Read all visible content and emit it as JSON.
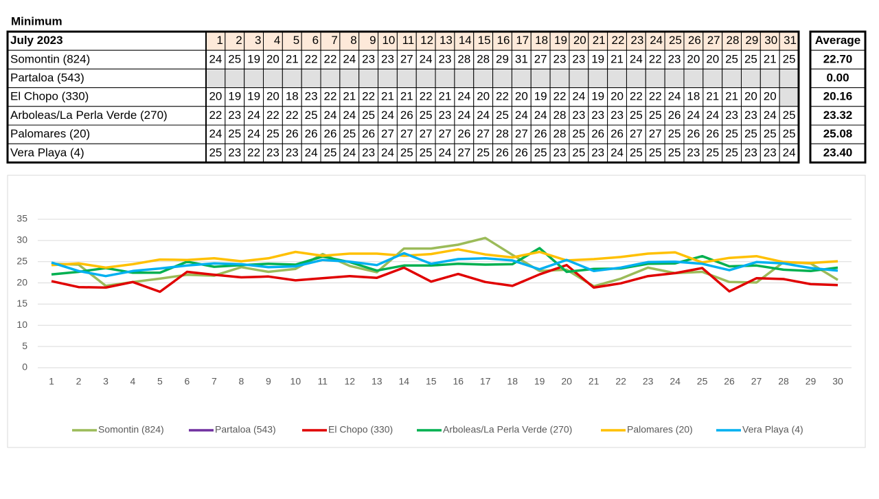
{
  "title": "Minimum",
  "table": {
    "columns": [
      "July 2023",
      1,
      2,
      3,
      4,
      5,
      6,
      7,
      8,
      9,
      10,
      11,
      12,
      13,
      14,
      15,
      16,
      17,
      18,
      19,
      20,
      21,
      22,
      23,
      24,
      25,
      26,
      27,
      28,
      29,
      30,
      31
    ],
    "average_header": "Average",
    "rows": [
      {
        "name": "Somontin (824)",
        "values": [
          24,
          25,
          19,
          20,
          21,
          22,
          22,
          24,
          23,
          23,
          27,
          24,
          23,
          28,
          28,
          29,
          31,
          27,
          23,
          23,
          19,
          21,
          24,
          22,
          23,
          20,
          20,
          25,
          25,
          21,
          25
        ],
        "average": "22.70"
      },
      {
        "name": "Partaloa (543)",
        "values": [
          null,
          null,
          null,
          null,
          null,
          null,
          null,
          null,
          null,
          null,
          null,
          null,
          null,
          null,
          null,
          null,
          null,
          null,
          null,
          null,
          null,
          null,
          null,
          null,
          null,
          null,
          null,
          null,
          null,
          null,
          null
        ],
        "average": "0.00"
      },
      {
        "name": "El Chopo (330)",
        "values": [
          20,
          19,
          19,
          20,
          18,
          23,
          22,
          21,
          22,
          21,
          21,
          22,
          21,
          24,
          20,
          22,
          20,
          19,
          22,
          24,
          19,
          20,
          22,
          22,
          24,
          18,
          21,
          21,
          20,
          20,
          null
        ],
        "average": "20.16"
      },
      {
        "name": "Arboleas/La Perla Verde (270)",
        "values": [
          22,
          23,
          24,
          22,
          22,
          25,
          24,
          24,
          25,
          24,
          26,
          25,
          23,
          24,
          24,
          25,
          24,
          24,
          28,
          23,
          23,
          23,
          25,
          25,
          26,
          24,
          24,
          23,
          23,
          24,
          25
        ],
        "average": "23.32"
      },
      {
        "name": "Palomares (20)",
        "values": [
          24,
          25,
          24,
          25,
          26,
          26,
          26,
          25,
          26,
          27,
          27,
          27,
          27,
          26,
          27,
          28,
          27,
          26,
          28,
          25,
          26,
          26,
          27,
          27,
          25,
          26,
          26,
          25,
          25,
          25,
          25
        ],
        "average": "25.08"
      },
      {
        "name": "Vera Playa (4)",
        "values": [
          25,
          23,
          22,
          23,
          23,
          24,
          25,
          24,
          23,
          24,
          25,
          25,
          24,
          27,
          25,
          26,
          26,
          25,
          23,
          25,
          23,
          24,
          25,
          25,
          25,
          23,
          25,
          25,
          23,
          23,
          24
        ],
        "average": "23.40"
      }
    ]
  },
  "chart_data": {
    "type": "line",
    "categories": [
      1,
      2,
      3,
      4,
      5,
      6,
      7,
      8,
      9,
      10,
      11,
      12,
      13,
      14,
      15,
      16,
      17,
      18,
      19,
      20,
      21,
      22,
      23,
      24,
      25,
      26,
      27,
      28,
      29,
      30
    ],
    "series": [
      {
        "name": "Somontin (824)",
        "color": "#9bbb59",
        "values": [
          24.5,
          24.3,
          19.3,
          20.2,
          21,
          21.9,
          21.7,
          23.7,
          22.6,
          23.3,
          26.8,
          24,
          22.5,
          28.1,
          28.1,
          29,
          30.6,
          26.6,
          22.8,
          23.1,
          19.2,
          21,
          23.6,
          22.3,
          22.6,
          20.2,
          20.1,
          24.9,
          24.6,
          20.7
        ]
      },
      {
        "name": "Partaloa (543)",
        "color": "#7030a0",
        "values": [
          null,
          null,
          null,
          null,
          null,
          null,
          null,
          null,
          null,
          null,
          null,
          null,
          null,
          null,
          null,
          null,
          null,
          null,
          null,
          null,
          null,
          null,
          null,
          null,
          null,
          null,
          null,
          null,
          null,
          null
        ]
      },
      {
        "name": "El Chopo (330)",
        "color": "#e00000",
        "values": [
          20.4,
          19,
          18.9,
          20.2,
          17.9,
          22.6,
          21.9,
          21.3,
          21.5,
          20.6,
          21.1,
          21.6,
          21.2,
          23.6,
          20.3,
          22.1,
          20.2,
          19.3,
          22,
          24.2,
          18.9,
          19.9,
          21.6,
          22.3,
          23.5,
          18,
          21.1,
          20.9,
          19.7,
          19.5
        ]
      },
      {
        "name": "Arboleas/La Perla Verde (270)",
        "color": "#00b050",
        "values": [
          22,
          22.6,
          23.5,
          22.4,
          22.4,
          25,
          23.8,
          24.2,
          24.5,
          24.3,
          26.2,
          24.9,
          22.9,
          24.1,
          24.1,
          24.5,
          24.3,
          24.4,
          28.2,
          22.6,
          23.3,
          23.4,
          24.5,
          24.6,
          26.3,
          23.9,
          24.1,
          23.1,
          22.8,
          23.6
        ]
      },
      {
        "name": "Palomares (20)",
        "color": "#ffc000",
        "values": [
          24.2,
          24.6,
          23.6,
          24.4,
          25.5,
          25.4,
          25.8,
          25.1,
          25.8,
          27.3,
          26.4,
          26.9,
          26.9,
          26.4,
          26.8,
          27.9,
          26.7,
          26,
          27.3,
          25.3,
          25.6,
          26.1,
          26.9,
          27.2,
          24.8,
          25.9,
          26.3,
          24.9,
          24.7,
          25.1
        ]
      },
      {
        "name": "Vera Playa (4)",
        "color": "#00b0f0",
        "values": [
          24.8,
          22.8,
          21.6,
          22.8,
          23.4,
          24.1,
          24.6,
          24.4,
          23.7,
          23.9,
          25.4,
          25,
          24.2,
          27,
          24.5,
          25.6,
          25.8,
          25.3,
          23.2,
          25.4,
          22.8,
          23.6,
          24.9,
          25,
          24.5,
          23,
          24.9,
          24.6,
          23.5,
          22.9
        ]
      }
    ],
    "ylim": [
      0,
      35
    ],
    "yticks": [
      0,
      5,
      10,
      15,
      20,
      25,
      30,
      35
    ],
    "grid": true,
    "legend": "bottom"
  }
}
